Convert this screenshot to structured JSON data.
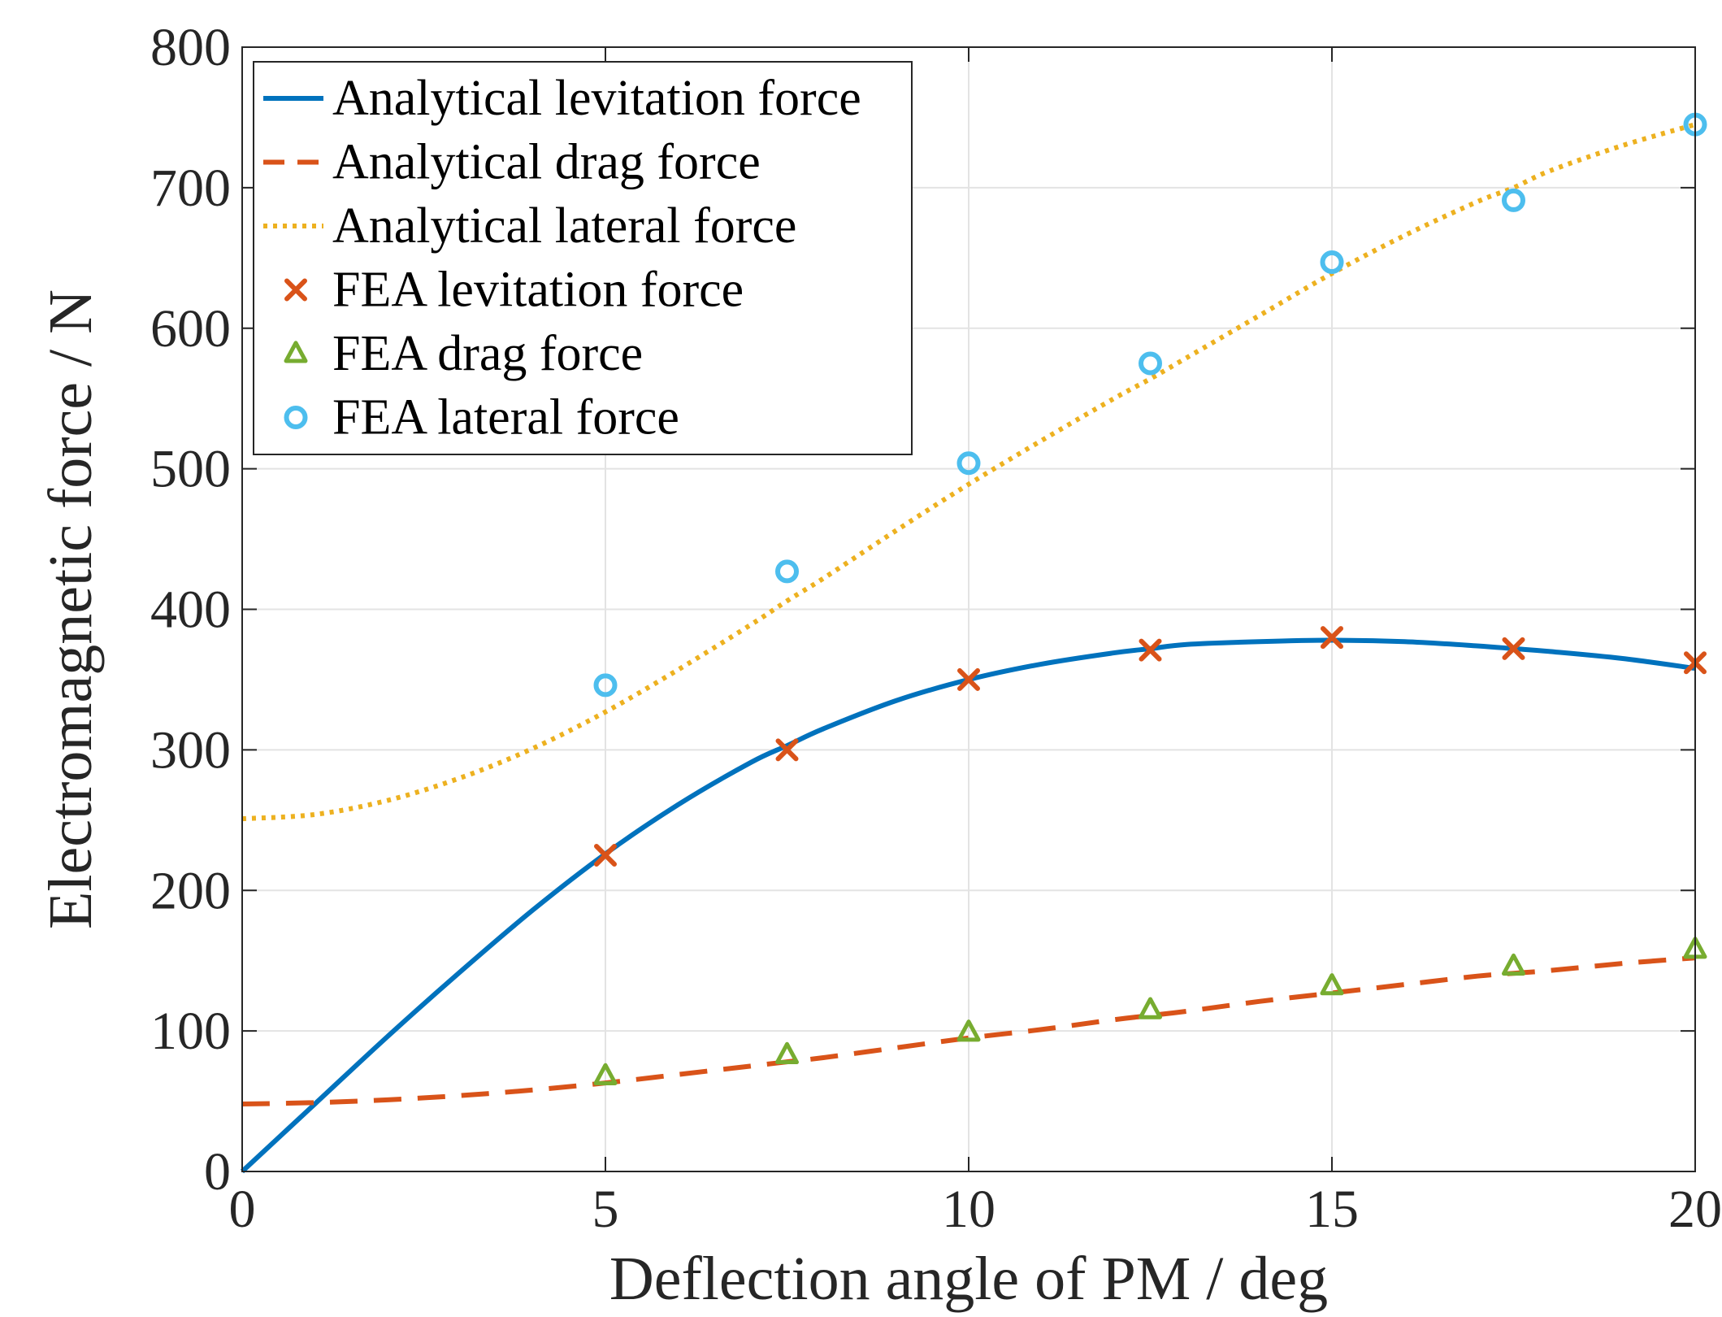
{
  "chart_data": {
    "type": "line",
    "title": "",
    "xlabel": "Deflection angle of PM / deg",
    "ylabel": "Electromagnetic force / N",
    "xlim": [
      0,
      20
    ],
    "ylim": [
      0,
      800
    ],
    "xticks": [
      0,
      5,
      10,
      15,
      20
    ],
    "yticks": [
      0,
      100,
      200,
      300,
      400,
      500,
      600,
      700,
      800
    ],
    "xtick_labels": [
      "0",
      "5",
      "10",
      "15",
      "20"
    ],
    "ytick_labels": [
      "0",
      "100",
      "200",
      "300",
      "400",
      "500",
      "600",
      "700",
      "800"
    ],
    "grid": true,
    "legend_position": "top-left",
    "series": [
      {
        "name": "Analytical levitation force",
        "kind": "line",
        "style": "solid",
        "color": "#0072bd",
        "x": [
          0,
          1,
          2,
          3,
          4,
          5,
          6,
          7,
          7.5,
          8,
          9,
          10,
          11,
          12,
          12.5,
          13,
          14,
          15,
          16,
          17,
          17.5,
          18,
          19,
          20
        ],
        "y": [
          0,
          48,
          96,
          142,
          186,
          226,
          261,
          291,
          303,
          315,
          335,
          350,
          361,
          369,
          372,
          375,
          377,
          378,
          377,
          374,
          372,
          370,
          365,
          358
        ]
      },
      {
        "name": "Analytical drag force",
        "kind": "line",
        "style": "dashed",
        "color": "#d95319",
        "x": [
          0,
          1,
          2,
          3,
          4,
          5,
          6,
          7,
          7.5,
          8,
          9,
          10,
          11,
          12,
          12.5,
          13,
          14,
          15,
          16,
          17,
          17.5,
          18,
          19,
          20
        ],
        "y": [
          48,
          49,
          51,
          54,
          58,
          63,
          69,
          75,
          78,
          81,
          88,
          95,
          101,
          108,
          111,
          114,
          121,
          127,
          133,
          139,
          141,
          143,
          148,
          152
        ]
      },
      {
        "name": "Analytical lateral force",
        "kind": "line",
        "style": "dotted",
        "color": "#edb120",
        "x": [
          0,
          1,
          2,
          3,
          4,
          5,
          6,
          7,
          7.5,
          8,
          9,
          10,
          11,
          12,
          12.5,
          13,
          14,
          15,
          16,
          17,
          17.5,
          18,
          19,
          20
        ],
        "y": [
          251,
          254,
          264,
          280,
          301,
          327,
          357,
          389,
          406,
          422,
          456,
          489,
          520,
          550,
          564,
          579,
          609,
          639,
          666,
          690,
          700,
          712,
          730,
          745
        ]
      },
      {
        "name": "FEA levitation force",
        "kind": "marker",
        "marker": "x",
        "color": "#d95319",
        "x": [
          5,
          7.5,
          10,
          12.5,
          15,
          17.5,
          20
        ],
        "y": [
          225,
          300,
          350,
          371,
          380,
          372,
          362
        ]
      },
      {
        "name": "FEA drag force",
        "kind": "marker",
        "marker": "triangle",
        "color": "#77ac30",
        "x": [
          5,
          7.5,
          10,
          12.5,
          15,
          17.5,
          20
        ],
        "y": [
          68,
          83,
          99,
          115,
          132,
          146,
          158
        ]
      },
      {
        "name": "FEA lateral force",
        "kind": "marker",
        "marker": "circle",
        "color": "#4dbeee",
        "x": [
          5,
          7.5,
          10,
          12.5,
          15,
          17.5,
          20
        ],
        "y": [
          346,
          427,
          504,
          575,
          647,
          691,
          745
        ]
      }
    ]
  }
}
